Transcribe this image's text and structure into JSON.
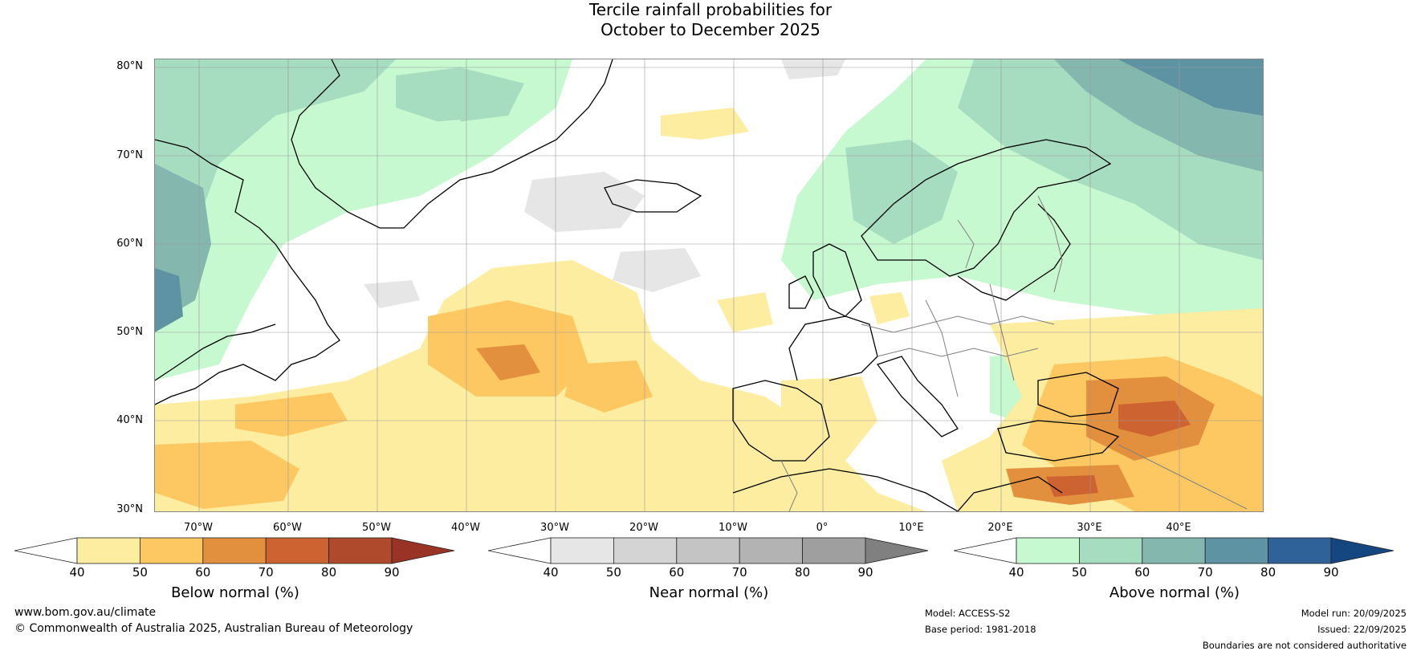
{
  "title": {
    "line1": "Tercile rainfall probabilities for",
    "line2": "October to December 2025"
  },
  "map": {
    "lat_labels": [
      "80°N",
      "70°N",
      "60°N",
      "50°N",
      "40°N",
      "30°N"
    ],
    "lon_labels": [
      "70°W",
      "60°W",
      "50°W",
      "40°W",
      "30°W",
      "20°W",
      "10°W",
      "0°",
      "10°E",
      "20°E",
      "30°E",
      "40°E"
    ],
    "colors": {
      "land_outline": "#000000",
      "border": "#808080",
      "grid": "#999999"
    }
  },
  "colorbars": [
    {
      "caption": "Below normal (%)",
      "ticks": [
        "40",
        "50",
        "60",
        "70",
        "80",
        "90"
      ],
      "colors": [
        "#ffffff",
        "#fdeda0",
        "#fdc861",
        "#e28f3e",
        "#cd6330",
        "#b04a2c",
        "#983325"
      ]
    },
    {
      "caption": "Near normal (%)",
      "ticks": [
        "40",
        "50",
        "60",
        "70",
        "80",
        "90"
      ],
      "colors": [
        "#ffffff",
        "#e6e6e6",
        "#d4d4d4",
        "#c4c4c4",
        "#b3b3b3",
        "#9f9f9f",
        "#808080"
      ]
    },
    {
      "caption": "Above normal (%)",
      "ticks": [
        "40",
        "50",
        "60",
        "70",
        "80",
        "90"
      ],
      "colors": [
        "#ffffff",
        "#c6f9cf",
        "#a6dcc0",
        "#84b8ae",
        "#5e93a3",
        "#2f6298",
        "#14477f"
      ]
    }
  ],
  "footer": {
    "website": "www.bom.gov.au/climate",
    "copyright": "© Commonwealth of Australia 2025, Australian Bureau of Meteorology",
    "model": "Model: ACCESS-S2",
    "base_period": "Base period: 1981-2018",
    "model_run": "Model run: 20/09/2025",
    "issued": "Issued: 22/09/2025",
    "disclaimer": "Boundaries are not considered authoritative"
  }
}
